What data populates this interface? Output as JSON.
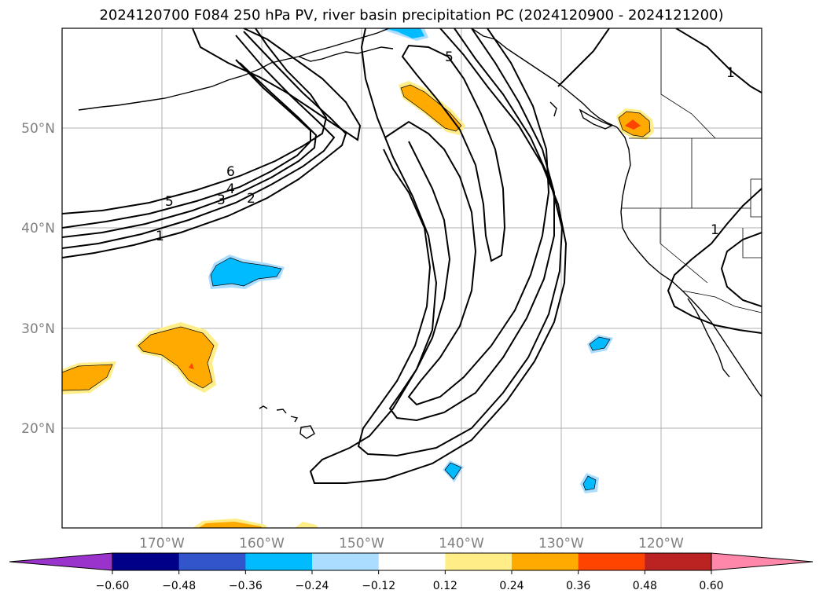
{
  "title": "2024120700 F084 250 hPa PV, river basin precipitation PC (2024120900 - 2024121200)",
  "map": {
    "lat_ticks": [
      "50°N",
      "40°N",
      "30°N",
      "20°N"
    ],
    "lon_ticks": [
      "170°W",
      "160°W",
      "150°W",
      "140°W",
      "130°W",
      "120°W"
    ],
    "contour_labels": [
      "5",
      "6",
      "5",
      "4",
      "3",
      "2",
      "1",
      "1",
      "1"
    ],
    "contour_color": "#000000",
    "gridlines": true
  },
  "colorbar": {
    "ticks": [
      "−0.60",
      "−0.48",
      "−0.36",
      "−0.24",
      "−0.12",
      "0.12",
      "0.24",
      "0.36",
      "0.48",
      "0.60"
    ],
    "colors": [
      "#9933cc",
      "#000088",
      "#3355cc",
      "#00bbff",
      "#aaddff",
      "#ffffff",
      "#ffee88",
      "#ffaa00",
      "#ff4400",
      "#bb2222",
      "#ff88aa",
      "#ff88aa"
    ],
    "extend": "both"
  }
}
